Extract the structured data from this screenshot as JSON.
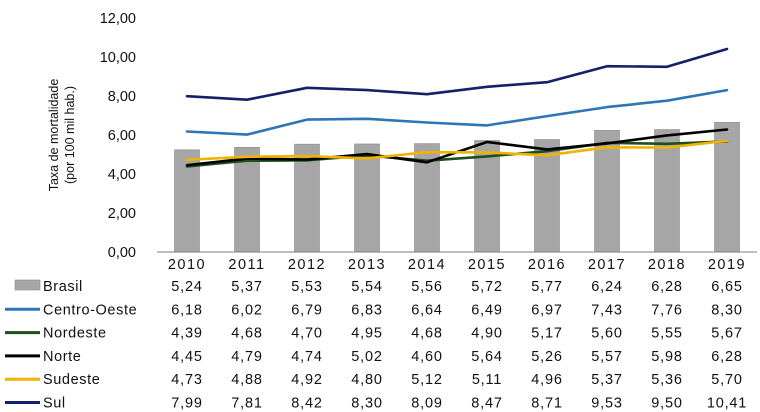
{
  "chart_data": {
    "type": "bar",
    "ylabel_lines": [
      "Taxa de mortalidade",
      "(por 100 mil hab.)"
    ],
    "ylim": [
      0,
      12
    ],
    "y_ticks": [
      "0,00",
      "2,00",
      "4,00",
      "6,00",
      "8,00",
      "10,00",
      "12,00"
    ],
    "y_tick_values": [
      0,
      2,
      4,
      6,
      8,
      10,
      12
    ],
    "categories": [
      "2010",
      "2011",
      "2012",
      "2013",
      "2014",
      "2015",
      "2016",
      "2017",
      "2018",
      "2019"
    ],
    "grid": false,
    "legend": "data table below the plot",
    "series": [
      {
        "name": "Brasil",
        "kind": "bar",
        "color": "#a6a6a6",
        "values": [
          5.24,
          5.37,
          5.53,
          5.54,
          5.56,
          5.72,
          5.77,
          6.24,
          6.28,
          6.65
        ],
        "labels": [
          "5,24",
          "5,37",
          "5,53",
          "5,54",
          "5,56",
          "5,72",
          "5,77",
          "6,24",
          "6,28",
          "6,65"
        ]
      },
      {
        "name": "Centro-Oeste",
        "kind": "line",
        "color": "#2e75b6",
        "values": [
          6.18,
          6.02,
          6.79,
          6.83,
          6.64,
          6.49,
          6.97,
          7.43,
          7.76,
          8.3
        ],
        "labels": [
          "6,18",
          "6,02",
          "6,79",
          "6,83",
          "6,64",
          "6,49",
          "6,97",
          "7,43",
          "7,76",
          "8,30"
        ]
      },
      {
        "name": "Nordeste",
        "kind": "line",
        "color": "#1e4d1e",
        "values": [
          4.39,
          4.68,
          4.7,
          4.95,
          4.68,
          4.9,
          5.17,
          5.6,
          5.55,
          5.67
        ],
        "labels": [
          "4,39",
          "4,68",
          "4,70",
          "4,95",
          "4,68",
          "4,90",
          "5,17",
          "5,60",
          "5,55",
          "5,67"
        ]
      },
      {
        "name": "Norte",
        "kind": "line",
        "color": "#000000",
        "values": [
          4.45,
          4.79,
          4.74,
          5.02,
          4.6,
          5.64,
          5.26,
          5.57,
          5.98,
          6.28
        ],
        "labels": [
          "4,45",
          "4,79",
          "4,74",
          "5,02",
          "4,60",
          "5,64",
          "5,26",
          "5,57",
          "5,98",
          "6,28"
        ]
      },
      {
        "name": "Sudeste",
        "kind": "line",
        "color": "#f0b400",
        "values": [
          4.73,
          4.88,
          4.92,
          4.8,
          5.12,
          5.11,
          4.96,
          5.37,
          5.36,
          5.7
        ],
        "labels": [
          "4,73",
          "4,88",
          "4,92",
          "4,80",
          "5,12",
          "5,11",
          "4,96",
          "5,37",
          "5,36",
          "5,70"
        ]
      },
      {
        "name": "Sul",
        "kind": "line",
        "color": "#14206b",
        "values": [
          7.99,
          7.81,
          8.42,
          8.3,
          8.09,
          8.47,
          8.71,
          9.53,
          9.5,
          10.41
        ],
        "labels": [
          "7,99",
          "7,81",
          "8,42",
          "8,30",
          "8,09",
          "8,47",
          "8,71",
          "9,53",
          "9,50",
          "10,41"
        ]
      }
    ]
  }
}
